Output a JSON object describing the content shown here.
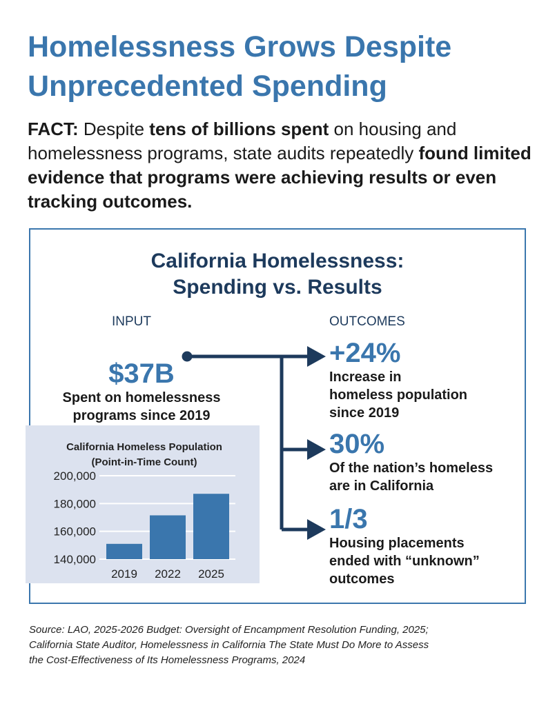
{
  "title": [
    "Homelessness Grows Despite",
    "Unprecedented Spending"
  ],
  "fact": {
    "label": "FACT:",
    "t1": " Despite ",
    "b1": "tens of billions spent",
    "t2": " on housing and homelessness programs, state audits repeatedly ",
    "b2": "found limited evidence that programs were achieving results or even tracking outcomes."
  },
  "infographic": {
    "title": [
      "California Homelessness:",
      "Spending vs. Results"
    ],
    "input_label": "INPUT",
    "outcomes_label": "OUTCOMES",
    "input": {
      "value": "$37B",
      "desc": [
        "Spent on homelessness",
        "programs since 2019"
      ]
    },
    "outcomes": [
      {
        "value": "+24%",
        "desc": [
          "Increase in",
          "homeless population",
          "since 2019"
        ]
      },
      {
        "value": "30%",
        "desc": [
          "Of the nation’s homeless",
          "are in California"
        ]
      },
      {
        "value": "1/3",
        "desc": [
          "Housing placements",
          "ended with “unknown”",
          "outcomes"
        ]
      }
    ],
    "colors": {
      "accent": "#3a76ad",
      "navy": "#1d3a5c",
      "panel": "#dce2ef"
    }
  },
  "chart_data": {
    "type": "bar",
    "title": "California Homeless Population",
    "subtitle": "(Point-in-Time Count)",
    "categories": [
      "2019",
      "2022",
      "2025"
    ],
    "values": [
      151000,
      171500,
      187000
    ],
    "ylim": [
      140000,
      200000
    ],
    "yticks": [
      "140,000",
      "160,000",
      "180,000",
      "200,000"
    ],
    "grid": true,
    "bar_color": "#3a76ad"
  },
  "source": [
    "Source: LAO, 2025-2026 Budget: Oversight of Encampment Resolution Funding, 2025;",
    "California State Auditor, Homelessness in California The State Must Do More to Assess",
    "the Cost-Effectiveness of Its Homelessness Programs, 2024"
  ]
}
